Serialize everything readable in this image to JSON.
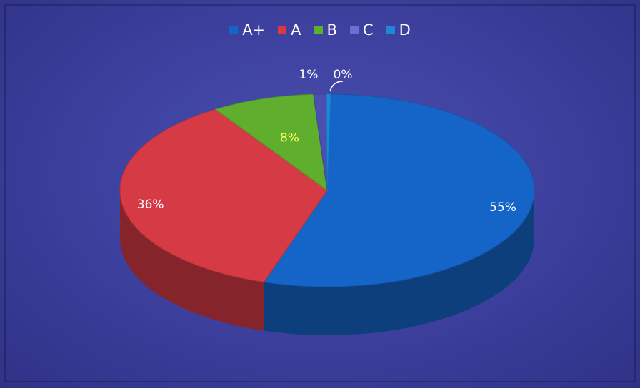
{
  "chart_data": {
    "type": "pie",
    "style": "3d",
    "categories": [
      "A+",
      "A",
      "B",
      "C",
      "D"
    ],
    "values": [
      55,
      36,
      8,
      1,
      0
    ],
    "data_labels": [
      "55%",
      "36%",
      "8%",
      "1%",
      "0%"
    ],
    "colors": [
      "#1565c8",
      "#d63a44",
      "#5fae2e",
      "#4a4fb0",
      "#1e88d6"
    ],
    "legend": {
      "position": "top",
      "entries": [
        "A+",
        "A",
        "B",
        "C",
        "D"
      ]
    },
    "background": "#3b3f9a"
  }
}
